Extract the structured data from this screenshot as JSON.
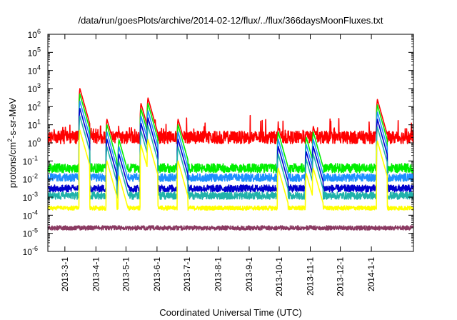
{
  "chart_data": {
    "type": "line",
    "title": "/data/run/goesPlots/archive/2014-02-12/flux/../flux/366daysMoonFluxes.txt",
    "xlabel": "Coordinated Universal Time (UTC)",
    "ylabel": {
      "prefix": "protons/cm",
      "sup": "2",
      "suffix": "-s-sr-MeV"
    },
    "xscale": "time",
    "yscale": "log",
    "xlim": [
      "2013-02-12",
      "2014-02-12"
    ],
    "ylim": [
      1e-06,
      1000000.0
    ],
    "grid": false,
    "x_ticks": [
      "2013-3-1",
      "2013-4-1",
      "2013-5-1",
      "2013-6-1",
      "2013-7-1",
      "2013-8-1",
      "2013-9-1",
      "2013-10-1",
      "2013-11-1",
      "2013-12-1",
      "2014-1-1"
    ],
    "y_ticks": [
      {
        "value": 1e-06,
        "exp": "-6"
      },
      {
        "value": 1e-05,
        "exp": "-5"
      },
      {
        "value": 0.0001,
        "exp": "-4"
      },
      {
        "value": 0.001,
        "exp": "-3"
      },
      {
        "value": 0.01,
        "exp": "-2"
      },
      {
        "value": 0.1,
        "exp": "-1"
      },
      {
        "value": 1,
        "exp": "0"
      },
      {
        "value": 10,
        "exp": "1"
      },
      {
        "value": 100,
        "exp": "2"
      },
      {
        "value": 1000,
        "exp": "3"
      },
      {
        "value": 10000,
        "exp": "4"
      },
      {
        "value": 100000,
        "exp": "5"
      },
      {
        "value": 1000000,
        "exp": "6"
      }
    ],
    "events": [
      {
        "date": "2013-03-16",
        "peak": 1000
      },
      {
        "date": "2013-04-12",
        "peak": 20
      },
      {
        "date": "2013-04-24",
        "peak": 3
      },
      {
        "date": "2013-05-16",
        "peak": 150
      },
      {
        "date": "2013-05-23",
        "peak": 300
      },
      {
        "date": "2013-06-22",
        "peak": 20
      },
      {
        "date": "2013-09-30",
        "peak": 8
      },
      {
        "date": "2013-10-28",
        "peak": 4
      },
      {
        "date": "2013-11-04",
        "peak": 8
      },
      {
        "date": "2014-01-07",
        "peak": 250
      }
    ],
    "series": [
      {
        "color": "#ff0000",
        "baseline": 2,
        "noise": 0.35,
        "event_scale": 1.0
      },
      {
        "color": "#00ee00",
        "baseline": 0.04,
        "noise": 0.25,
        "event_scale": 0.5
      },
      {
        "color": "#1e90ff",
        "baseline": 0.012,
        "noise": 0.22,
        "event_scale": 0.2
      },
      {
        "color": "#0000cd",
        "baseline": 0.003,
        "noise": 0.2,
        "event_scale": 0.08
      },
      {
        "color": "#20b2aa",
        "baseline": 0.0012,
        "noise": 0.2,
        "event_scale": 0.03
      },
      {
        "color": "#ffff00",
        "baseline": 0.00025,
        "noise": 0.12,
        "event_scale": 0.005
      },
      {
        "color": "#8b3a62",
        "baseline": 2e-05,
        "noise": 0.12,
        "event_scale": 0.0
      }
    ]
  }
}
